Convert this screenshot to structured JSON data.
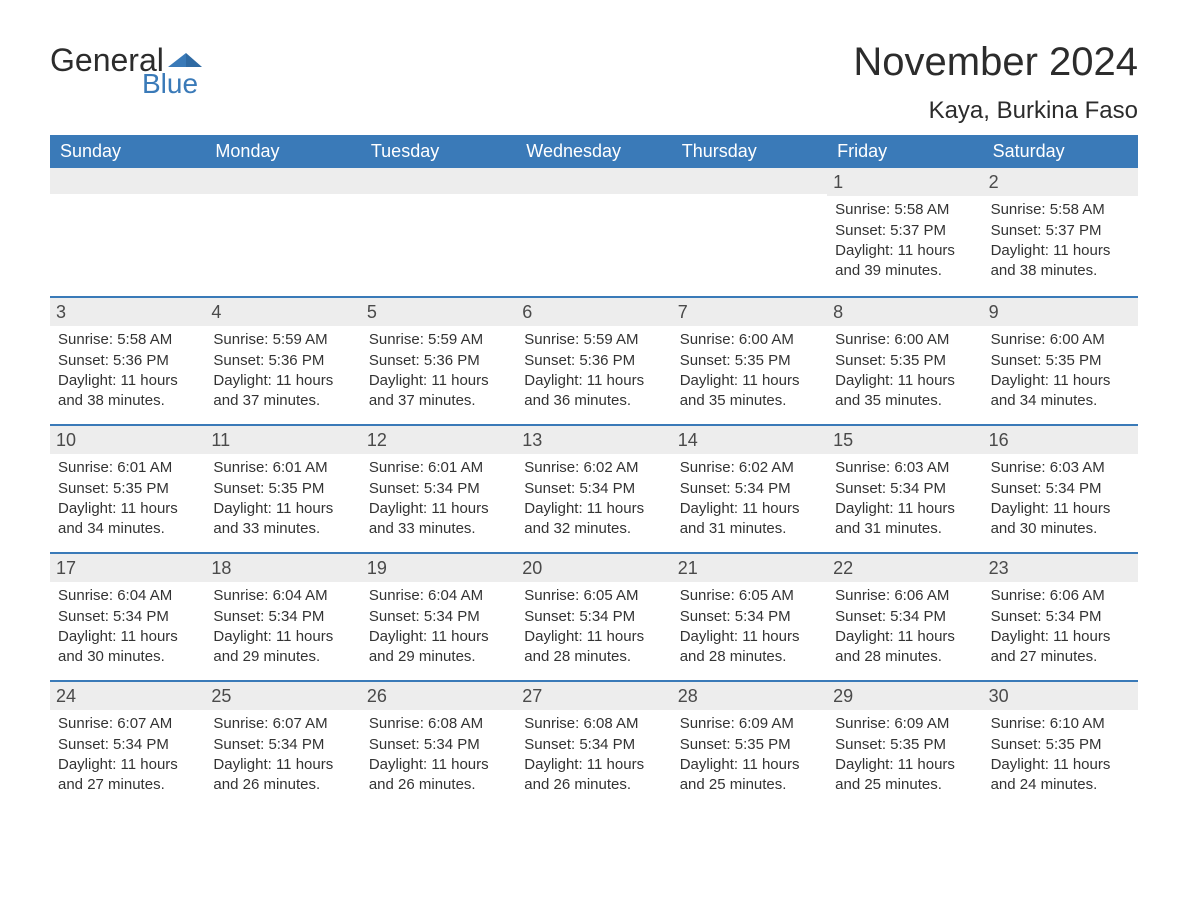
{
  "logo": {
    "word1": "General",
    "word2": "Blue"
  },
  "title": "November 2024",
  "location": "Kaya, Burkina Faso",
  "colors": {
    "header_bg": "#3a7ab8",
    "header_text": "#ffffff",
    "daynum_bg": "#ededed",
    "daynum_text": "#4a4a4a",
    "body_text": "#333333",
    "rule": "#3a7ab8",
    "page_bg": "#ffffff",
    "logo_blue": "#3a7ab8",
    "logo_dark": "#2c2c2c"
  },
  "days_of_week": [
    "Sunday",
    "Monday",
    "Tuesday",
    "Wednesday",
    "Thursday",
    "Friday",
    "Saturday"
  ],
  "weeks": [
    [
      null,
      null,
      null,
      null,
      null,
      {
        "n": "1",
        "sunrise": "Sunrise: 5:58 AM",
        "sunset": "Sunset: 5:37 PM",
        "day1": "Daylight: 11 hours",
        "day2": "and 39 minutes."
      },
      {
        "n": "2",
        "sunrise": "Sunrise: 5:58 AM",
        "sunset": "Sunset: 5:37 PM",
        "day1": "Daylight: 11 hours",
        "day2": "and 38 minutes."
      }
    ],
    [
      {
        "n": "3",
        "sunrise": "Sunrise: 5:58 AM",
        "sunset": "Sunset: 5:36 PM",
        "day1": "Daylight: 11 hours",
        "day2": "and 38 minutes."
      },
      {
        "n": "4",
        "sunrise": "Sunrise: 5:59 AM",
        "sunset": "Sunset: 5:36 PM",
        "day1": "Daylight: 11 hours",
        "day2": "and 37 minutes."
      },
      {
        "n": "5",
        "sunrise": "Sunrise: 5:59 AM",
        "sunset": "Sunset: 5:36 PM",
        "day1": "Daylight: 11 hours",
        "day2": "and 37 minutes."
      },
      {
        "n": "6",
        "sunrise": "Sunrise: 5:59 AM",
        "sunset": "Sunset: 5:36 PM",
        "day1": "Daylight: 11 hours",
        "day2": "and 36 minutes."
      },
      {
        "n": "7",
        "sunrise": "Sunrise: 6:00 AM",
        "sunset": "Sunset: 5:35 PM",
        "day1": "Daylight: 11 hours",
        "day2": "and 35 minutes."
      },
      {
        "n": "8",
        "sunrise": "Sunrise: 6:00 AM",
        "sunset": "Sunset: 5:35 PM",
        "day1": "Daylight: 11 hours",
        "day2": "and 35 minutes."
      },
      {
        "n": "9",
        "sunrise": "Sunrise: 6:00 AM",
        "sunset": "Sunset: 5:35 PM",
        "day1": "Daylight: 11 hours",
        "day2": "and 34 minutes."
      }
    ],
    [
      {
        "n": "10",
        "sunrise": "Sunrise: 6:01 AM",
        "sunset": "Sunset: 5:35 PM",
        "day1": "Daylight: 11 hours",
        "day2": "and 34 minutes."
      },
      {
        "n": "11",
        "sunrise": "Sunrise: 6:01 AM",
        "sunset": "Sunset: 5:35 PM",
        "day1": "Daylight: 11 hours",
        "day2": "and 33 minutes."
      },
      {
        "n": "12",
        "sunrise": "Sunrise: 6:01 AM",
        "sunset": "Sunset: 5:34 PM",
        "day1": "Daylight: 11 hours",
        "day2": "and 33 minutes."
      },
      {
        "n": "13",
        "sunrise": "Sunrise: 6:02 AM",
        "sunset": "Sunset: 5:34 PM",
        "day1": "Daylight: 11 hours",
        "day2": "and 32 minutes."
      },
      {
        "n": "14",
        "sunrise": "Sunrise: 6:02 AM",
        "sunset": "Sunset: 5:34 PM",
        "day1": "Daylight: 11 hours",
        "day2": "and 31 minutes."
      },
      {
        "n": "15",
        "sunrise": "Sunrise: 6:03 AM",
        "sunset": "Sunset: 5:34 PM",
        "day1": "Daylight: 11 hours",
        "day2": "and 31 minutes."
      },
      {
        "n": "16",
        "sunrise": "Sunrise: 6:03 AM",
        "sunset": "Sunset: 5:34 PM",
        "day1": "Daylight: 11 hours",
        "day2": "and 30 minutes."
      }
    ],
    [
      {
        "n": "17",
        "sunrise": "Sunrise: 6:04 AM",
        "sunset": "Sunset: 5:34 PM",
        "day1": "Daylight: 11 hours",
        "day2": "and 30 minutes."
      },
      {
        "n": "18",
        "sunrise": "Sunrise: 6:04 AM",
        "sunset": "Sunset: 5:34 PM",
        "day1": "Daylight: 11 hours",
        "day2": "and 29 minutes."
      },
      {
        "n": "19",
        "sunrise": "Sunrise: 6:04 AM",
        "sunset": "Sunset: 5:34 PM",
        "day1": "Daylight: 11 hours",
        "day2": "and 29 minutes."
      },
      {
        "n": "20",
        "sunrise": "Sunrise: 6:05 AM",
        "sunset": "Sunset: 5:34 PM",
        "day1": "Daylight: 11 hours",
        "day2": "and 28 minutes."
      },
      {
        "n": "21",
        "sunrise": "Sunrise: 6:05 AM",
        "sunset": "Sunset: 5:34 PM",
        "day1": "Daylight: 11 hours",
        "day2": "and 28 minutes."
      },
      {
        "n": "22",
        "sunrise": "Sunrise: 6:06 AM",
        "sunset": "Sunset: 5:34 PM",
        "day1": "Daylight: 11 hours",
        "day2": "and 28 minutes."
      },
      {
        "n": "23",
        "sunrise": "Sunrise: 6:06 AM",
        "sunset": "Sunset: 5:34 PM",
        "day1": "Daylight: 11 hours",
        "day2": "and 27 minutes."
      }
    ],
    [
      {
        "n": "24",
        "sunrise": "Sunrise: 6:07 AM",
        "sunset": "Sunset: 5:34 PM",
        "day1": "Daylight: 11 hours",
        "day2": "and 27 minutes."
      },
      {
        "n": "25",
        "sunrise": "Sunrise: 6:07 AM",
        "sunset": "Sunset: 5:34 PM",
        "day1": "Daylight: 11 hours",
        "day2": "and 26 minutes."
      },
      {
        "n": "26",
        "sunrise": "Sunrise: 6:08 AM",
        "sunset": "Sunset: 5:34 PM",
        "day1": "Daylight: 11 hours",
        "day2": "and 26 minutes."
      },
      {
        "n": "27",
        "sunrise": "Sunrise: 6:08 AM",
        "sunset": "Sunset: 5:34 PM",
        "day1": "Daylight: 11 hours",
        "day2": "and 26 minutes."
      },
      {
        "n": "28",
        "sunrise": "Sunrise: 6:09 AM",
        "sunset": "Sunset: 5:35 PM",
        "day1": "Daylight: 11 hours",
        "day2": "and 25 minutes."
      },
      {
        "n": "29",
        "sunrise": "Sunrise: 6:09 AM",
        "sunset": "Sunset: 5:35 PM",
        "day1": "Daylight: 11 hours",
        "day2": "and 25 minutes."
      },
      {
        "n": "30",
        "sunrise": "Sunrise: 6:10 AM",
        "sunset": "Sunset: 5:35 PM",
        "day1": "Daylight: 11 hours",
        "day2": "and 24 minutes."
      }
    ]
  ]
}
